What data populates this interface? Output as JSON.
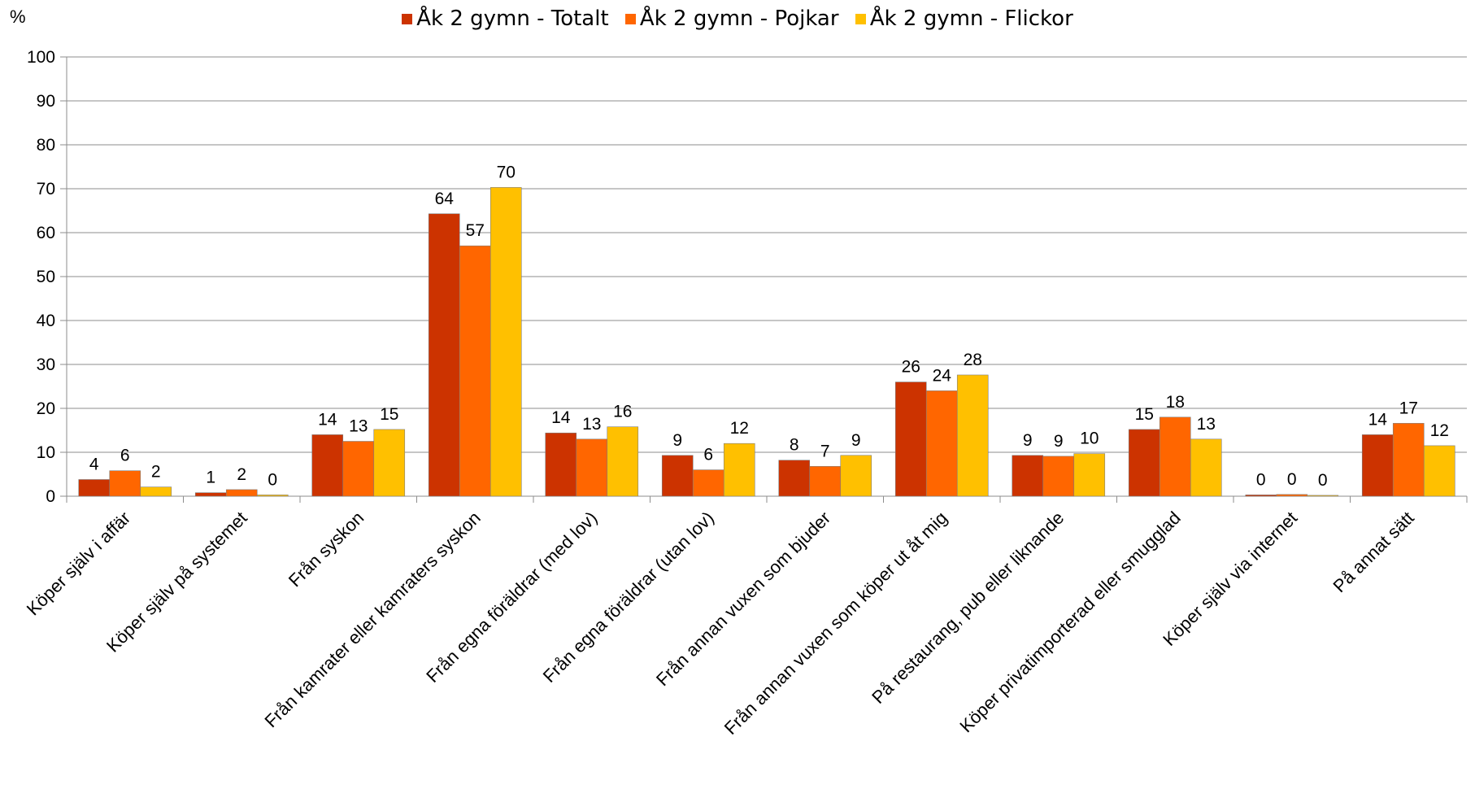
{
  "chart_data": {
    "type": "bar",
    "ylabel": "%",
    "ylim": [
      0,
      100
    ],
    "yticks": [
      0,
      10,
      20,
      30,
      40,
      50,
      60,
      70,
      80,
      90,
      100
    ],
    "legend_position": "top-center",
    "grid": true,
    "categories": [
      "Köper själv i affär",
      "Köper själv på systemet",
      "Från syskon",
      "Från kamrater eller kamraters syskon",
      "Från egna föräldrar (med lov)",
      "Från egna föräldrar (utan lov)",
      "Från annan vuxen som bjuder",
      "Från annan vuxen som köper ut åt mig",
      "På restaurang, pub eller liknande",
      "Köper privatimporterad eller smugglad",
      "Köper själv via internet",
      "På annat sätt"
    ],
    "series": [
      {
        "name": "Åk 2 gymn - Totalt",
        "color": "#CC3300",
        "values": [
          3.8,
          0.8,
          14.0,
          64.3,
          14.4,
          9.3,
          8.2,
          26.0,
          9.3,
          15.2,
          0.3,
          14.0
        ],
        "labels": [
          "4",
          "1",
          "14",
          "64",
          "14",
          "9",
          "8",
          "26",
          "9",
          "15",
          "0",
          "14"
        ]
      },
      {
        "name": "Åk 2 gymn - Pojkar",
        "color": "#FF6600",
        "values": [
          5.8,
          1.5,
          12.5,
          57.0,
          13.0,
          6.0,
          6.8,
          24.0,
          9.1,
          18.0,
          0.4,
          16.6
        ],
        "labels": [
          "6",
          "2",
          "13",
          "57",
          "13",
          "6",
          "7",
          "24",
          "9",
          "18",
          "0",
          "17"
        ]
      },
      {
        "name": "Åk 2 gymn - Flickor",
        "color": "#FFC000",
        "values": [
          2.1,
          0.3,
          15.2,
          70.3,
          15.8,
          12.0,
          9.3,
          27.6,
          9.7,
          13.0,
          0.2,
          11.5
        ],
        "labels": [
          "2",
          "0",
          "15",
          "70",
          "16",
          "12",
          "9",
          "28",
          "10",
          "13",
          "0",
          "12"
        ]
      }
    ]
  }
}
